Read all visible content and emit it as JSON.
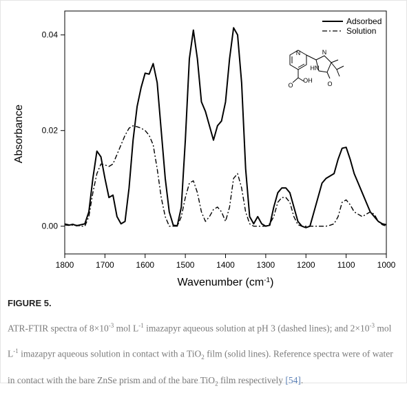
{
  "chart_data": {
    "type": "line",
    "xlabel": [
      "Wavenumber (cm",
      "-1",
      ")"
    ],
    "ylabel": "Absorbance",
    "xlim": [
      1800,
      1000
    ],
    "ylim": [
      -0.0058,
      0.045
    ],
    "xticks": [
      1800,
      1700,
      1600,
      1500,
      1400,
      1300,
      1200,
      1100,
      1000
    ],
    "yticks": [
      {
        "value": 0,
        "label": "0.00"
      },
      {
        "value": 0.02,
        "label": "0.02"
      },
      {
        "value": 0.04,
        "label": "0.04"
      }
    ],
    "legend": "top-right",
    "x": [
      1800,
      1790,
      1780,
      1770,
      1760,
      1750,
      1740,
      1730,
      1720,
      1710,
      1700,
      1690,
      1680,
      1670,
      1660,
      1650,
      1640,
      1630,
      1620,
      1610,
      1600,
      1590,
      1580,
      1570,
      1560,
      1550,
      1540,
      1530,
      1520,
      1510,
      1500,
      1490,
      1480,
      1470,
      1460,
      1450,
      1440,
      1430,
      1420,
      1410,
      1400,
      1390,
      1380,
      1370,
      1360,
      1350,
      1340,
      1330,
      1320,
      1310,
      1300,
      1290,
      1280,
      1270,
      1260,
      1250,
      1240,
      1230,
      1220,
      1210,
      1200,
      1190,
      1180,
      1170,
      1160,
      1150,
      1140,
      1130,
      1120,
      1110,
      1100,
      1090,
      1080,
      1070,
      1060,
      1050,
      1040,
      1030,
      1020,
      1010,
      1000
    ],
    "series": [
      {
        "name": "Adsorbed",
        "color": "#000000",
        "dash": "solid",
        "values": [
          0.0003,
          0.0002,
          0.0004,
          0.0001,
          0.0003,
          0.0005,
          0.003,
          0.01,
          0.0157,
          0.0145,
          0.01,
          0.006,
          0.0065,
          0.002,
          0.0005,
          0.001,
          0.008,
          0.018,
          0.025,
          0.029,
          0.032,
          0.0318,
          0.034,
          0.03,
          0.02,
          0.01,
          0.003,
          0.0002,
          0.0001,
          0.004,
          0.018,
          0.035,
          0.041,
          0.035,
          0.026,
          0.024,
          0.021,
          0.018,
          0.021,
          0.022,
          0.026,
          0.035,
          0.0415,
          0.04,
          0.03,
          0.012,
          0.002,
          0.0005,
          0.002,
          0.0005,
          0,
          0.0002,
          0.004,
          0.007,
          0.008,
          0.008,
          0.007,
          0.004,
          0.001,
          0,
          -0.0003,
          0,
          0.003,
          0.006,
          0.009,
          0.01,
          0.0105,
          0.011,
          0.014,
          0.0163,
          0.0165,
          0.014,
          0.011,
          0.009,
          0.007,
          0.005,
          0.003,
          0.002,
          0.001,
          0.0005,
          0.0003
        ]
      },
      {
        "name": "Solution",
        "color": "#000000",
        "dash": "dashdot",
        "values": [
          0.0005,
          0.0003,
          0.0002,
          0.0002,
          0,
          0,
          0.002,
          0.007,
          0.011,
          0.013,
          0.0128,
          0.0125,
          0.013,
          0.015,
          0.017,
          0.019,
          0.0205,
          0.021,
          0.0208,
          0.0205,
          0.02,
          0.019,
          0.017,
          0.012,
          0.006,
          0.002,
          0,
          0,
          0,
          0.002,
          0.006,
          0.009,
          0.0095,
          0.007,
          0.003,
          0.001,
          0.002,
          0.0035,
          0.004,
          0.003,
          0.001,
          0.004,
          0.01,
          0.011,
          0.008,
          0.003,
          0.0005,
          0,
          0,
          0,
          0,
          0.0005,
          0.002,
          0.005,
          0.006,
          0.006,
          0.005,
          0.002,
          0.0003,
          0,
          0,
          0,
          0,
          0,
          0,
          0,
          0.0002,
          0.0005,
          0.002,
          0.005,
          0.0055,
          0.0045,
          0.003,
          0.0025,
          0.002,
          0.0025,
          0.003,
          0.0025,
          0.001,
          0.0003,
          0
        ]
      }
    ],
    "inset_labels": [
      "N",
      "N",
      "HN",
      "O",
      "OH",
      "O"
    ]
  },
  "figure_label": "FIGURE 5.",
  "caption": [
    {
      "text": "ATR-FTIR spectra of 8×10"
    },
    {
      "text": "-3",
      "format": "sup"
    },
    {
      "text": " mol L"
    },
    {
      "text": "-1",
      "format": "sup"
    },
    {
      "text": " imazapyr aqueous solution at pH 3 (dashed lines); and 2×10"
    },
    {
      "text": "-3",
      "format": "sup"
    },
    {
      "text": " mol L"
    },
    {
      "text": "-1",
      "format": "sup"
    },
    {
      "text": " imazapyr aqueous solution in contact with a TiO"
    },
    {
      "text": "2",
      "format": "sub"
    },
    {
      "text": " film (solid lines). Reference spectra were of water in contact with the bare ZnSe prism and of the bare TiO"
    },
    {
      "text": "2",
      "format": "sub"
    },
    {
      "text": " film respectively "
    },
    {
      "text": "[54]",
      "format": "link"
    },
    {
      "text": "."
    }
  ]
}
